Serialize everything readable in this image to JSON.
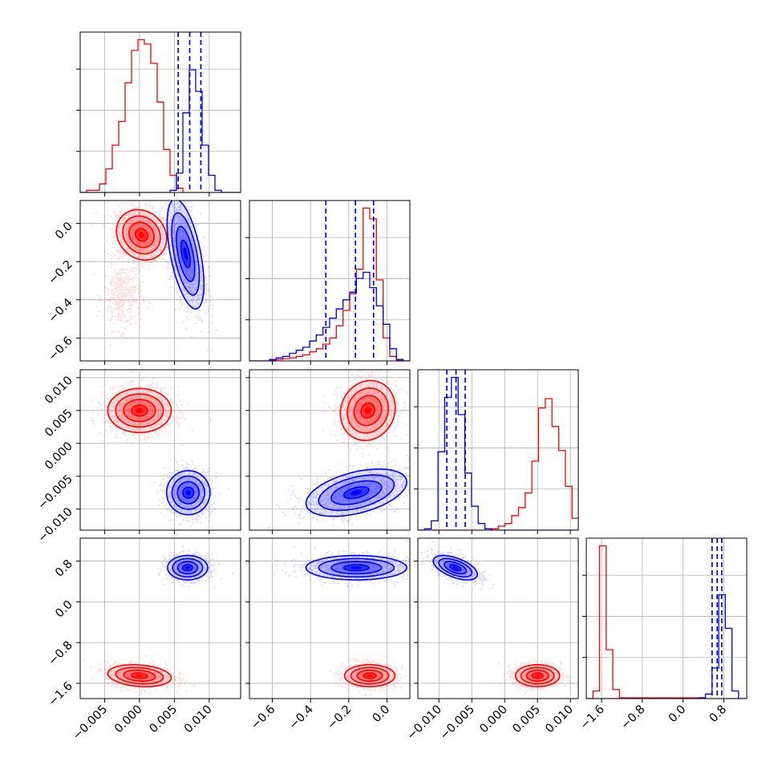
{
  "chart_data": {
    "type": "corner",
    "grid": true,
    "colors": {
      "red": "#ff0000",
      "blue": "#0000ff"
    },
    "parameters": [
      {
        "range": [
          -0.0085,
          0.0145
        ],
        "ticks": [
          -0.005,
          0.0,
          0.005,
          0.01
        ],
        "tick_labels": [
          "−0.005",
          "0.000",
          "0.005",
          "0.010"
        ]
      },
      {
        "range": [
          -0.72,
          0.12
        ],
        "ticks": [
          -0.6,
          -0.4,
          -0.2,
          0.0
        ],
        "tick_labels": [
          "−0.6",
          "−0.4",
          "−0.2",
          "0.0"
        ]
      },
      {
        "range": [
          -0.0132,
          0.0112
        ],
        "ticks": [
          -0.01,
          -0.005,
          0.0,
          0.005,
          0.01
        ],
        "tick_labels": [
          "−0.010",
          "−0.005",
          "0.000",
          "0.005",
          "0.010"
        ]
      },
      {
        "range": [
          -1.9,
          1.25
        ],
        "ticks": [
          -1.6,
          -0.8,
          0.0,
          0.8
        ],
        "tick_labels": [
          "−1.6",
          "−0.8",
          "0.0",
          "0.8"
        ]
      }
    ],
    "marginals": [
      {
        "edges": [
          -0.0085,
          0.01
        ],
        "step": 0.00092,
        "n_bins": 25,
        "red": [
          0,
          1,
          1,
          4,
          11,
          22,
          33,
          51,
          66,
          71,
          69,
          60,
          42,
          20,
          8,
          2,
          0,
          0,
          0,
          0,
          0,
          0,
          0,
          0,
          0
        ],
        "blue": [
          0,
          0,
          0,
          0,
          0,
          0,
          0,
          0,
          0,
          0,
          0,
          0,
          0,
          0,
          1,
          9,
          37,
          57,
          47,
          22,
          8,
          1,
          0,
          0,
          0
        ],
        "quantiles_blue": [
          0.00555,
          0.0072,
          0.0088
        ]
      },
      {
        "edges": [
          -0.72,
          0.12
        ],
        "step": 0.035,
        "n_bins": 24,
        "red": [
          0,
          0,
          0,
          0.5,
          1,
          1.5,
          2,
          3,
          4,
          6,
          8,
          11,
          15,
          23,
          33,
          44,
          60,
          100,
          93,
          53,
          15,
          3,
          0.5,
          0
        ],
        "blue": [
          0,
          0,
          0,
          1,
          2,
          3,
          5,
          7,
          9,
          13,
          17,
          22,
          28,
          34,
          40,
          45,
          54,
          58,
          48,
          36,
          24,
          8,
          1,
          0
        ],
        "quantiles_blue": [
          -0.32,
          -0.165,
          -0.07
        ]
      },
      {
        "edges": [
          -0.0132,
          0.0112
        ],
        "step": 0.00102,
        "n_bins": 24,
        "red": [
          0,
          0,
          0,
          0,
          0,
          0,
          0,
          0,
          0,
          0,
          0,
          1,
          3,
          5,
          11,
          17,
          28,
          52,
          92,
          99,
          78,
          60,
          33,
          9
        ],
        "blue": [
          0,
          1,
          7,
          59,
          100,
          115,
          87,
          43,
          18,
          5,
          1,
          0,
          0,
          0,
          0,
          0,
          0,
          0,
          0,
          0,
          0,
          0,
          0,
          0
        ],
        "quantiles_blue": [
          -0.0088,
          -0.0074,
          -0.006
        ]
      },
      {
        "edges": [
          -1.9,
          1.25
        ],
        "step": 0.13,
        "n_bins": 24,
        "red": [
          0,
          5,
          100,
          32,
          6,
          0.5,
          0.5,
          0.5,
          0.5,
          0.5,
          0.5,
          0.5,
          0.5,
          0.5,
          0.5,
          0.5,
          0.5,
          0.5,
          0,
          0,
          0,
          0,
          0,
          0
        ],
        "blue": [
          0,
          0,
          0,
          0,
          0,
          0,
          0,
          0,
          0,
          0,
          0,
          0,
          0,
          0,
          0,
          0,
          0,
          0.5,
          3,
          20,
          68,
          46,
          5,
          0
        ],
        "quantiles_blue": [
          0.57,
          0.67,
          0.76
        ]
      }
    ],
    "pairs": [
      {
        "row": 1,
        "col": 0,
        "red": {
          "cx": 0.0003,
          "cy": -0.06,
          "sx": 0.0015,
          "sy": 0.055,
          "rho": -0.15,
          "halo_x": -0.0025,
          "halo_y": -0.38
        },
        "blue": {
          "cx": 0.0066,
          "cy": -0.16,
          "sx": 0.0011,
          "sy": 0.12,
          "rho": -0.55
        }
      },
      {
        "row": 2,
        "col": 0,
        "red": {
          "cx": 0.0,
          "cy": 0.005,
          "sx": 0.0019,
          "sy": 0.0014,
          "rho": 0.0
        },
        "blue": {
          "cx": 0.007,
          "cy": -0.0075,
          "sx": 0.0013,
          "sy": 0.0014,
          "rho": 0.0
        }
      },
      {
        "row": 2,
        "col": 1,
        "red": {
          "cx": -0.1,
          "cy": 0.005,
          "sx": 0.06,
          "sy": 0.0019,
          "rho": 0.1
        },
        "blue": {
          "cx": -0.16,
          "cy": -0.0075,
          "sx": 0.11,
          "sy": 0.0015,
          "rho": 0.45
        }
      },
      {
        "row": 3,
        "col": 0,
        "red": {
          "cx": 0.0,
          "cy": -1.45,
          "sx": 0.0019,
          "sy": 0.09,
          "rho": -0.2
        },
        "blue": {
          "cx": 0.0069,
          "cy": 0.67,
          "sx": 0.0012,
          "sy": 0.1,
          "rho": 0.0
        }
      },
      {
        "row": 3,
        "col": 1,
        "red": {
          "cx": -0.09,
          "cy": -1.45,
          "sx": 0.055,
          "sy": 0.09,
          "rho": 0.0
        },
        "blue": {
          "cx": -0.16,
          "cy": 0.67,
          "sx": 0.11,
          "sy": 0.1,
          "rho": 0.0
        }
      },
      {
        "row": 3,
        "col": 2,
        "red": {
          "cx": 0.005,
          "cy": -1.45,
          "sx": 0.0014,
          "sy": 0.09,
          "rho": 0.0
        },
        "blue": {
          "cx": -0.0075,
          "cy": 0.67,
          "sx": 0.0014,
          "sy": 0.1,
          "rho": -0.55
        }
      }
    ]
  }
}
